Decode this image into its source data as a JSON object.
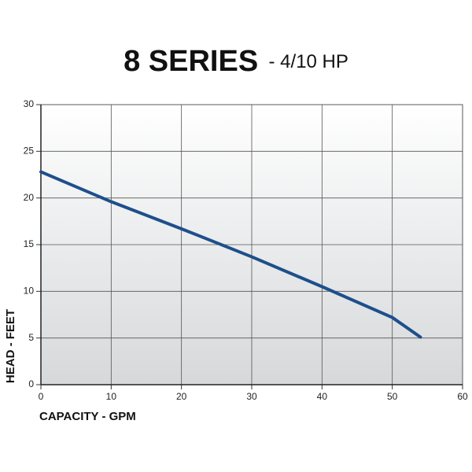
{
  "chart_data": {
    "type": "line",
    "title": "8 SERIES",
    "subtitle": "- 4/10 HP",
    "x_label": "CAPACITY - GPM",
    "y_label": "HEAD - FEET",
    "x": [
      0,
      10,
      20,
      30,
      40,
      50,
      54
    ],
    "values": [
      22.8,
      19.6,
      16.7,
      13.7,
      10.5,
      7.2,
      5.1
    ],
    "color": "#1d4f8c",
    "xlim": [
      0,
      60
    ],
    "xticks": [
      0,
      10,
      20,
      30,
      40,
      50,
      60
    ],
    "ylim": [
      0,
      30
    ],
    "yticks": [
      0,
      5,
      10,
      15,
      20,
      25,
      30
    ],
    "grid": true
  }
}
